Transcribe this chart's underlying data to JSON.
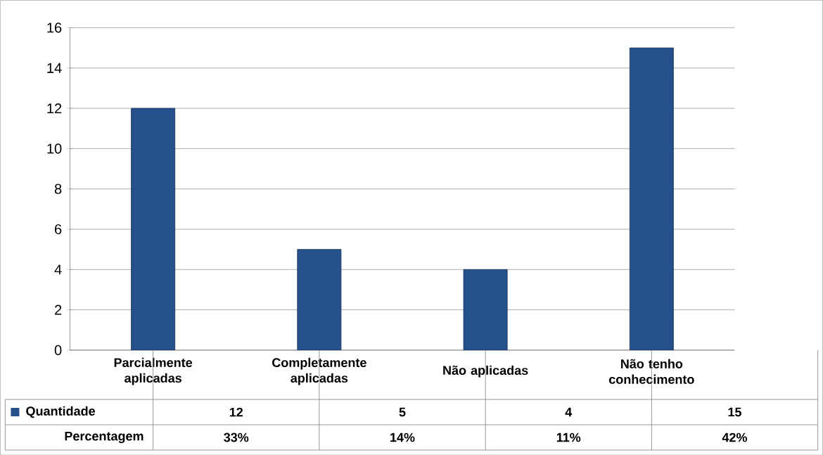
{
  "chart_data": {
    "type": "bar",
    "categories": [
      "Parcialmente aplicadas",
      "Completamente aplicadas",
      "Não aplicadas",
      "Não tenho conhecimento"
    ],
    "series": [
      {
        "name": "Quantidade",
        "color": "#24508c",
        "values": [
          12,
          5,
          4,
          15
        ]
      }
    ],
    "ylim": [
      0,
      16
    ],
    "yticks": [
      0,
      2,
      4,
      6,
      8,
      10,
      12,
      14,
      16
    ],
    "grid": "y",
    "legend": "bottom left",
    "annotations": [
      "12",
      "5",
      "4",
      "15",
      "Percentagem",
      "33%",
      "14%",
      "11%",
      "42%"
    ]
  }
}
